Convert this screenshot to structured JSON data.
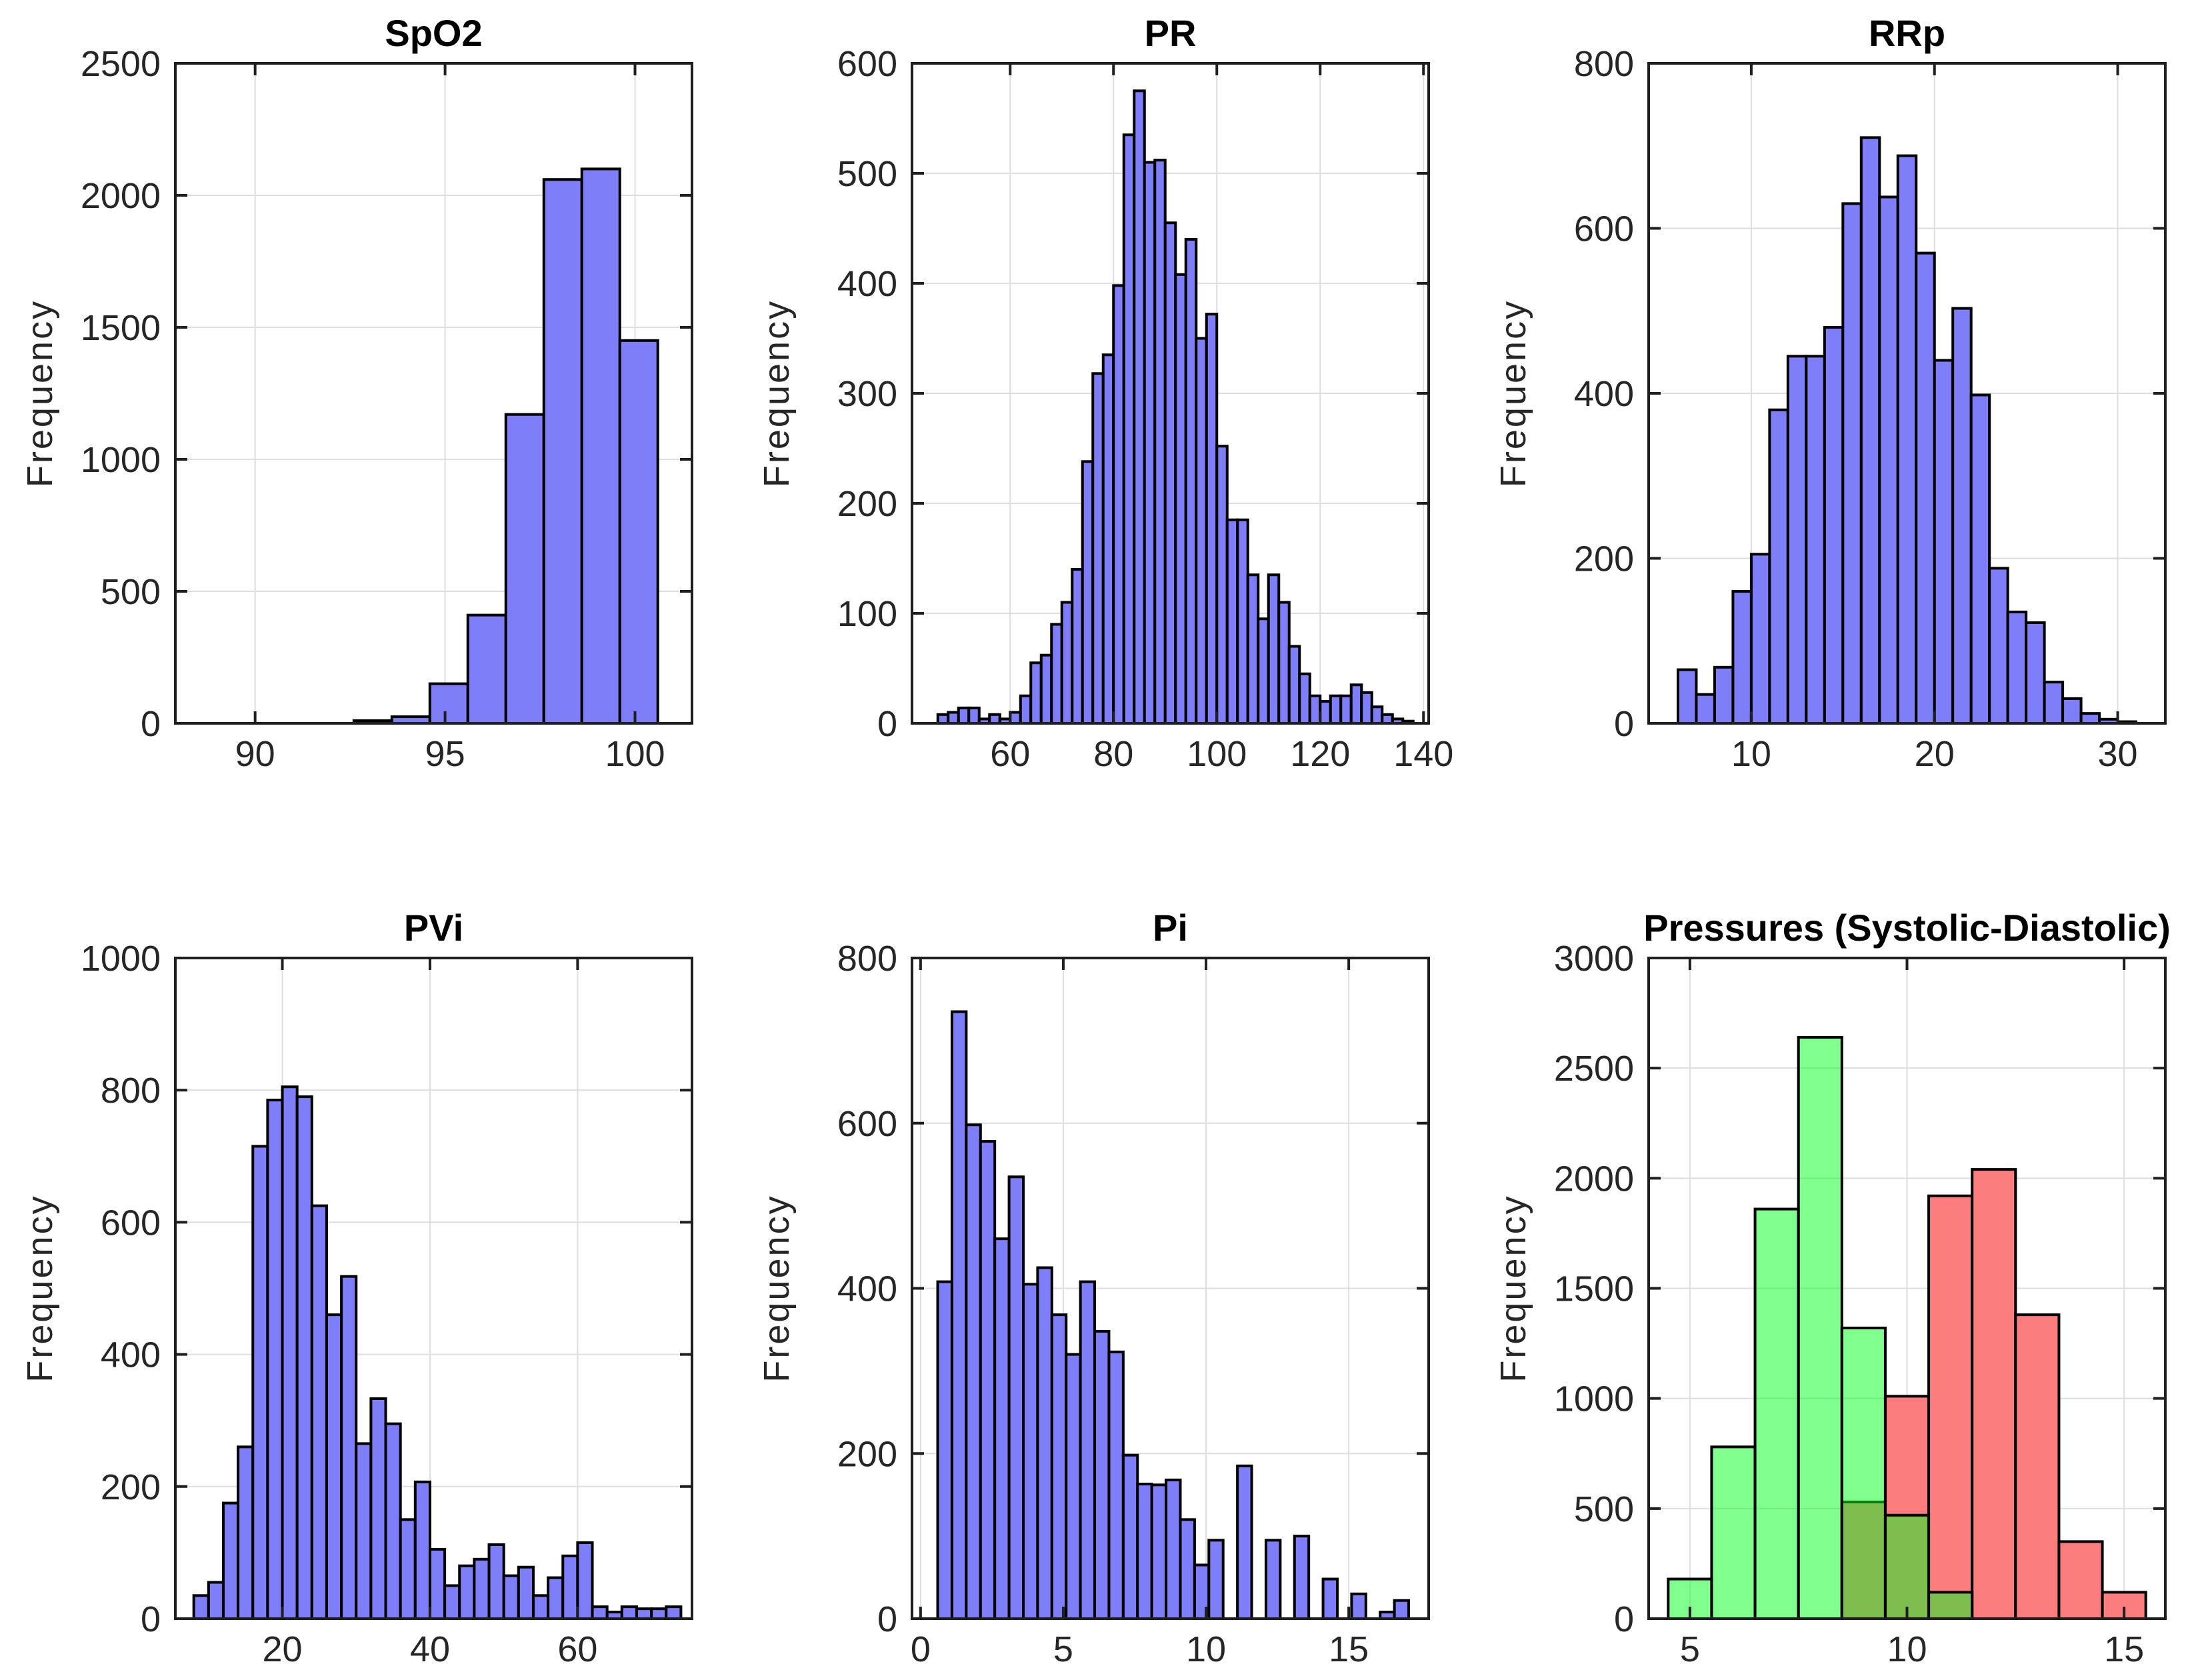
{
  "figure": {
    "background": "#FFFFFF",
    "ylabel": "Frequency"
  },
  "colors": {
    "histogram_blue": "#7E7EF8",
    "systolic_red": "#FB7D7D",
    "diastolic_green": "rgba(1,255,31,0.5)",
    "bar_edge": "#000000",
    "grid_line": "#DEDEDE",
    "axis_line": "#1F1F1F",
    "tick_label": "#262626",
    "title_color": "#000000"
  },
  "chart_data": [
    {
      "id": "spo2",
      "type": "bar",
      "title": "SpO2",
      "xlabel": "",
      "ylabel": "Frequency",
      "xlim": [
        87.9,
        101.5
      ],
      "ylim": [
        0,
        2500
      ],
      "xticks": [
        90,
        95,
        100
      ],
      "yticks": [
        0,
        500,
        1000,
        1500,
        2000,
        2500
      ],
      "grid": true,
      "legend": null,
      "series": [
        {
          "name": "SpO2",
          "fill": "#7E7EF8",
          "edge": "#000000",
          "bin_start": 92.6,
          "bin_width": 1,
          "values": [
            10,
            25,
            150,
            410,
            1170,
            2060,
            2100,
            1450
          ]
        }
      ]
    },
    {
      "id": "pr",
      "type": "bar",
      "title": "PR",
      "xlabel": "",
      "ylabel": "Frequency",
      "xlim": [
        41,
        141
      ],
      "ylim": [
        0,
        600
      ],
      "xticks": [
        60,
        80,
        100,
        120,
        140
      ],
      "yticks": [
        0,
        100,
        200,
        300,
        400,
        500,
        600
      ],
      "grid": true,
      "legend": null,
      "series": [
        {
          "name": "PR",
          "fill": "#7E7EF8",
          "edge": "#000000",
          "bin_start": 46,
          "bin_width": 2,
          "values": [
            8,
            10,
            14,
            14,
            4,
            8,
            4,
            10,
            25,
            55,
            62,
            90,
            110,
            140,
            238,
            318,
            335,
            398,
            535,
            575,
            510,
            512,
            455,
            408,
            440,
            350,
            372,
            252,
            185,
            185,
            135,
            95,
            135,
            110,
            70,
            45,
            25,
            20,
            25,
            25,
            35,
            28,
            15,
            8,
            4,
            2
          ]
        }
      ]
    },
    {
      "id": "rrp",
      "type": "bar",
      "title": "RRp",
      "xlabel": "",
      "ylabel": "Frequency",
      "xlim": [
        4.4,
        32.6
      ],
      "ylim": [
        0,
        800
      ],
      "xticks": [
        10,
        20,
        30
      ],
      "yticks": [
        0,
        200,
        400,
        600,
        800
      ],
      "grid": true,
      "legend": null,
      "series": [
        {
          "name": "RRp",
          "fill": "#7E7EF8",
          "edge": "#000000",
          "bin_start": 6,
          "bin_width": 1,
          "values": [
            65,
            35,
            68,
            160,
            205,
            380,
            445,
            445,
            480,
            630,
            710,
            638,
            688,
            570,
            440,
            503,
            398,
            188,
            135,
            122,
            50,
            30,
            12,
            5,
            2
          ]
        }
      ]
    },
    {
      "id": "pvi",
      "type": "bar",
      "title": "PVi",
      "xlabel": "",
      "ylabel": "Frequency",
      "xlim": [
        5.5,
        75.5
      ],
      "ylim": [
        0,
        1000
      ],
      "xticks": [
        20,
        40,
        60
      ],
      "yticks": [
        0,
        200,
        400,
        600,
        800,
        1000
      ],
      "grid": true,
      "legend": null,
      "series": [
        {
          "name": "PVi",
          "fill": "#7E7EF8",
          "edge": "#000000",
          "bin_start": 8,
          "bin_width": 2,
          "values": [
            35,
            55,
            175,
            260,
            715,
            785,
            805,
            790,
            625,
            460,
            518,
            265,
            333,
            295,
            150,
            207,
            105,
            50,
            80,
            90,
            112,
            65,
            78,
            35,
            62,
            95,
            115,
            18,
            10,
            18,
            15,
            15,
            18
          ]
        }
      ]
    },
    {
      "id": "pi",
      "type": "bar",
      "title": "Pi",
      "xlabel": "",
      "ylabel": "Frequency",
      "xlim": [
        -0.3,
        17.8
      ],
      "ylim": [
        0,
        800
      ],
      "xticks": [
        0,
        5,
        10,
        15
      ],
      "yticks": [
        0,
        200,
        400,
        600,
        800
      ],
      "grid": true,
      "legend": null,
      "series": [
        {
          "name": "Pi",
          "fill": "#7E7EF8",
          "edge": "#000000",
          "bin_start": 0.6,
          "bin_width": 0.5,
          "values": [
            408,
            735,
            598,
            578,
            460,
            535,
            405,
            425,
            368,
            320,
            408,
            348,
            323,
            198,
            163,
            162,
            168,
            120,
            65,
            95,
            0,
            185,
            0,
            95,
            0,
            100,
            0,
            48,
            0,
            30,
            0,
            8,
            22
          ]
        }
      ]
    },
    {
      "id": "pressures",
      "type": "bar",
      "title": "Pressures (Systolic-Diastolic)",
      "xlabel": "",
      "ylabel": "Frequency",
      "xlim": [
        4.05,
        15.95
      ],
      "ylim": [
        0,
        3000
      ],
      "xticks": [
        5,
        10,
        15
      ],
      "yticks": [
        0,
        500,
        1000,
        1500,
        2000,
        2500,
        3000
      ],
      "grid": true,
      "legend": null,
      "series": [
        {
          "name": "Systolic",
          "fill": "#FB7D7D",
          "edge": "#000000",
          "bin_start": 8.5,
          "bin_width": 1,
          "values": [
            530,
            1010,
            1920,
            2040,
            1380,
            350,
            120
          ]
        },
        {
          "name": "Diastolic",
          "fill": "rgba(1,255,31,0.5)",
          "edge": "#000000",
          "bin_start": 4.5,
          "bin_width": 1,
          "values": [
            180,
            780,
            1860,
            2640,
            1320,
            470,
            120
          ]
        }
      ]
    }
  ]
}
